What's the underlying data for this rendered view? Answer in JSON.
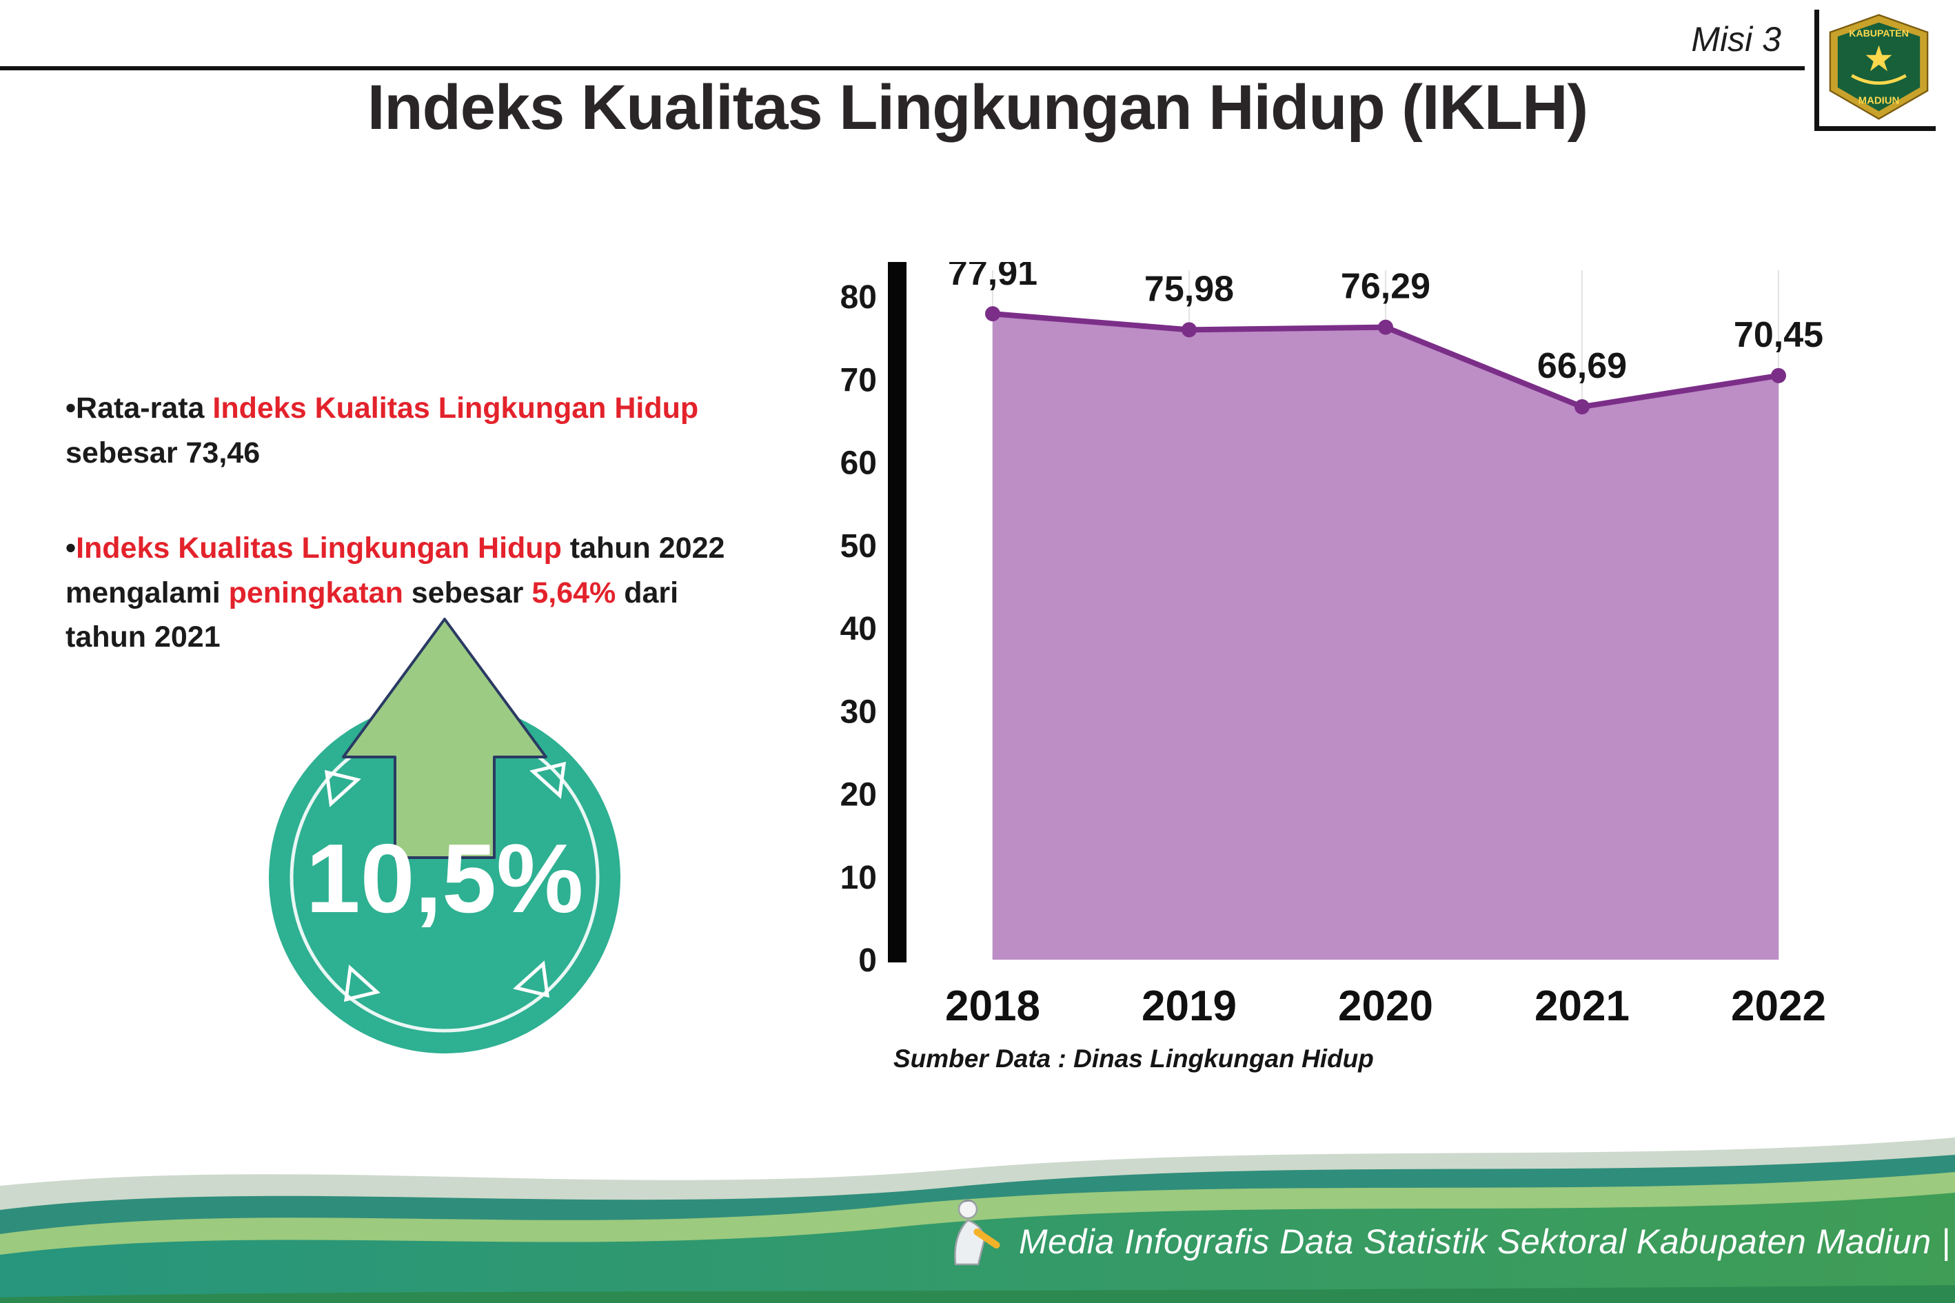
{
  "header": {
    "misi_label": "Misi 3",
    "title": "Indeks Kualitas Lingkungan Hidup (IKLH)",
    "logo": {
      "line1": "KABUPATEN",
      "line2": "MADIUN"
    }
  },
  "bullets": {
    "b1": {
      "pre": "•Rata-rata ",
      "red": "Indeks Kualitas Lingkungan Hidup",
      "post": " sebesar 73,46"
    },
    "b2": {
      "pre": "•",
      "red1": "Indeks Kualitas Lingkungan Hidup",
      "mid1": " tahun 2022 mengalami ",
      "red2": "peningkatan",
      "mid2": " sebesar ",
      "red3": "5,64%",
      "post": " dari tahun 2021"
    }
  },
  "badge": {
    "value": "10,5%",
    "direction": "up"
  },
  "chart_data": {
    "type": "area",
    "title": "",
    "categories": [
      "2018",
      "2019",
      "2020",
      "2021",
      "2022"
    ],
    "values": [
      77.91,
      75.98,
      76.29,
      66.69,
      70.45
    ],
    "point_labels": [
      "77,91",
      "75,98",
      "76,29",
      "66,69",
      "70,45"
    ],
    "xlabel": "",
    "ylabel": "",
    "ylim": [
      0,
      80
    ],
    "yticks": [
      0,
      10,
      20,
      30,
      40,
      50,
      60,
      70,
      80
    ],
    "grid": "faint-vertical",
    "legend": "none",
    "fill_color": "#bd8dc6",
    "line_color": "#7b2e88"
  },
  "source_note": "Sumber Data : Dinas Lingkungan Hidup",
  "footer": {
    "credit": "Media Infografis Data Statistik Sektoral Kabupaten Madiun |"
  },
  "colors": {
    "red_accent": "#e3222b",
    "teal_badge": "#2eb092",
    "arrow_green": "#9ccb84",
    "purple_fill": "#bd8dc6",
    "purple_line": "#7b2e88",
    "footer_teal": "#2f8d7b",
    "footer_green": "#3f9d56",
    "footer_light_green": "#9cca7e",
    "footer_sage": "#cdd9cc"
  }
}
